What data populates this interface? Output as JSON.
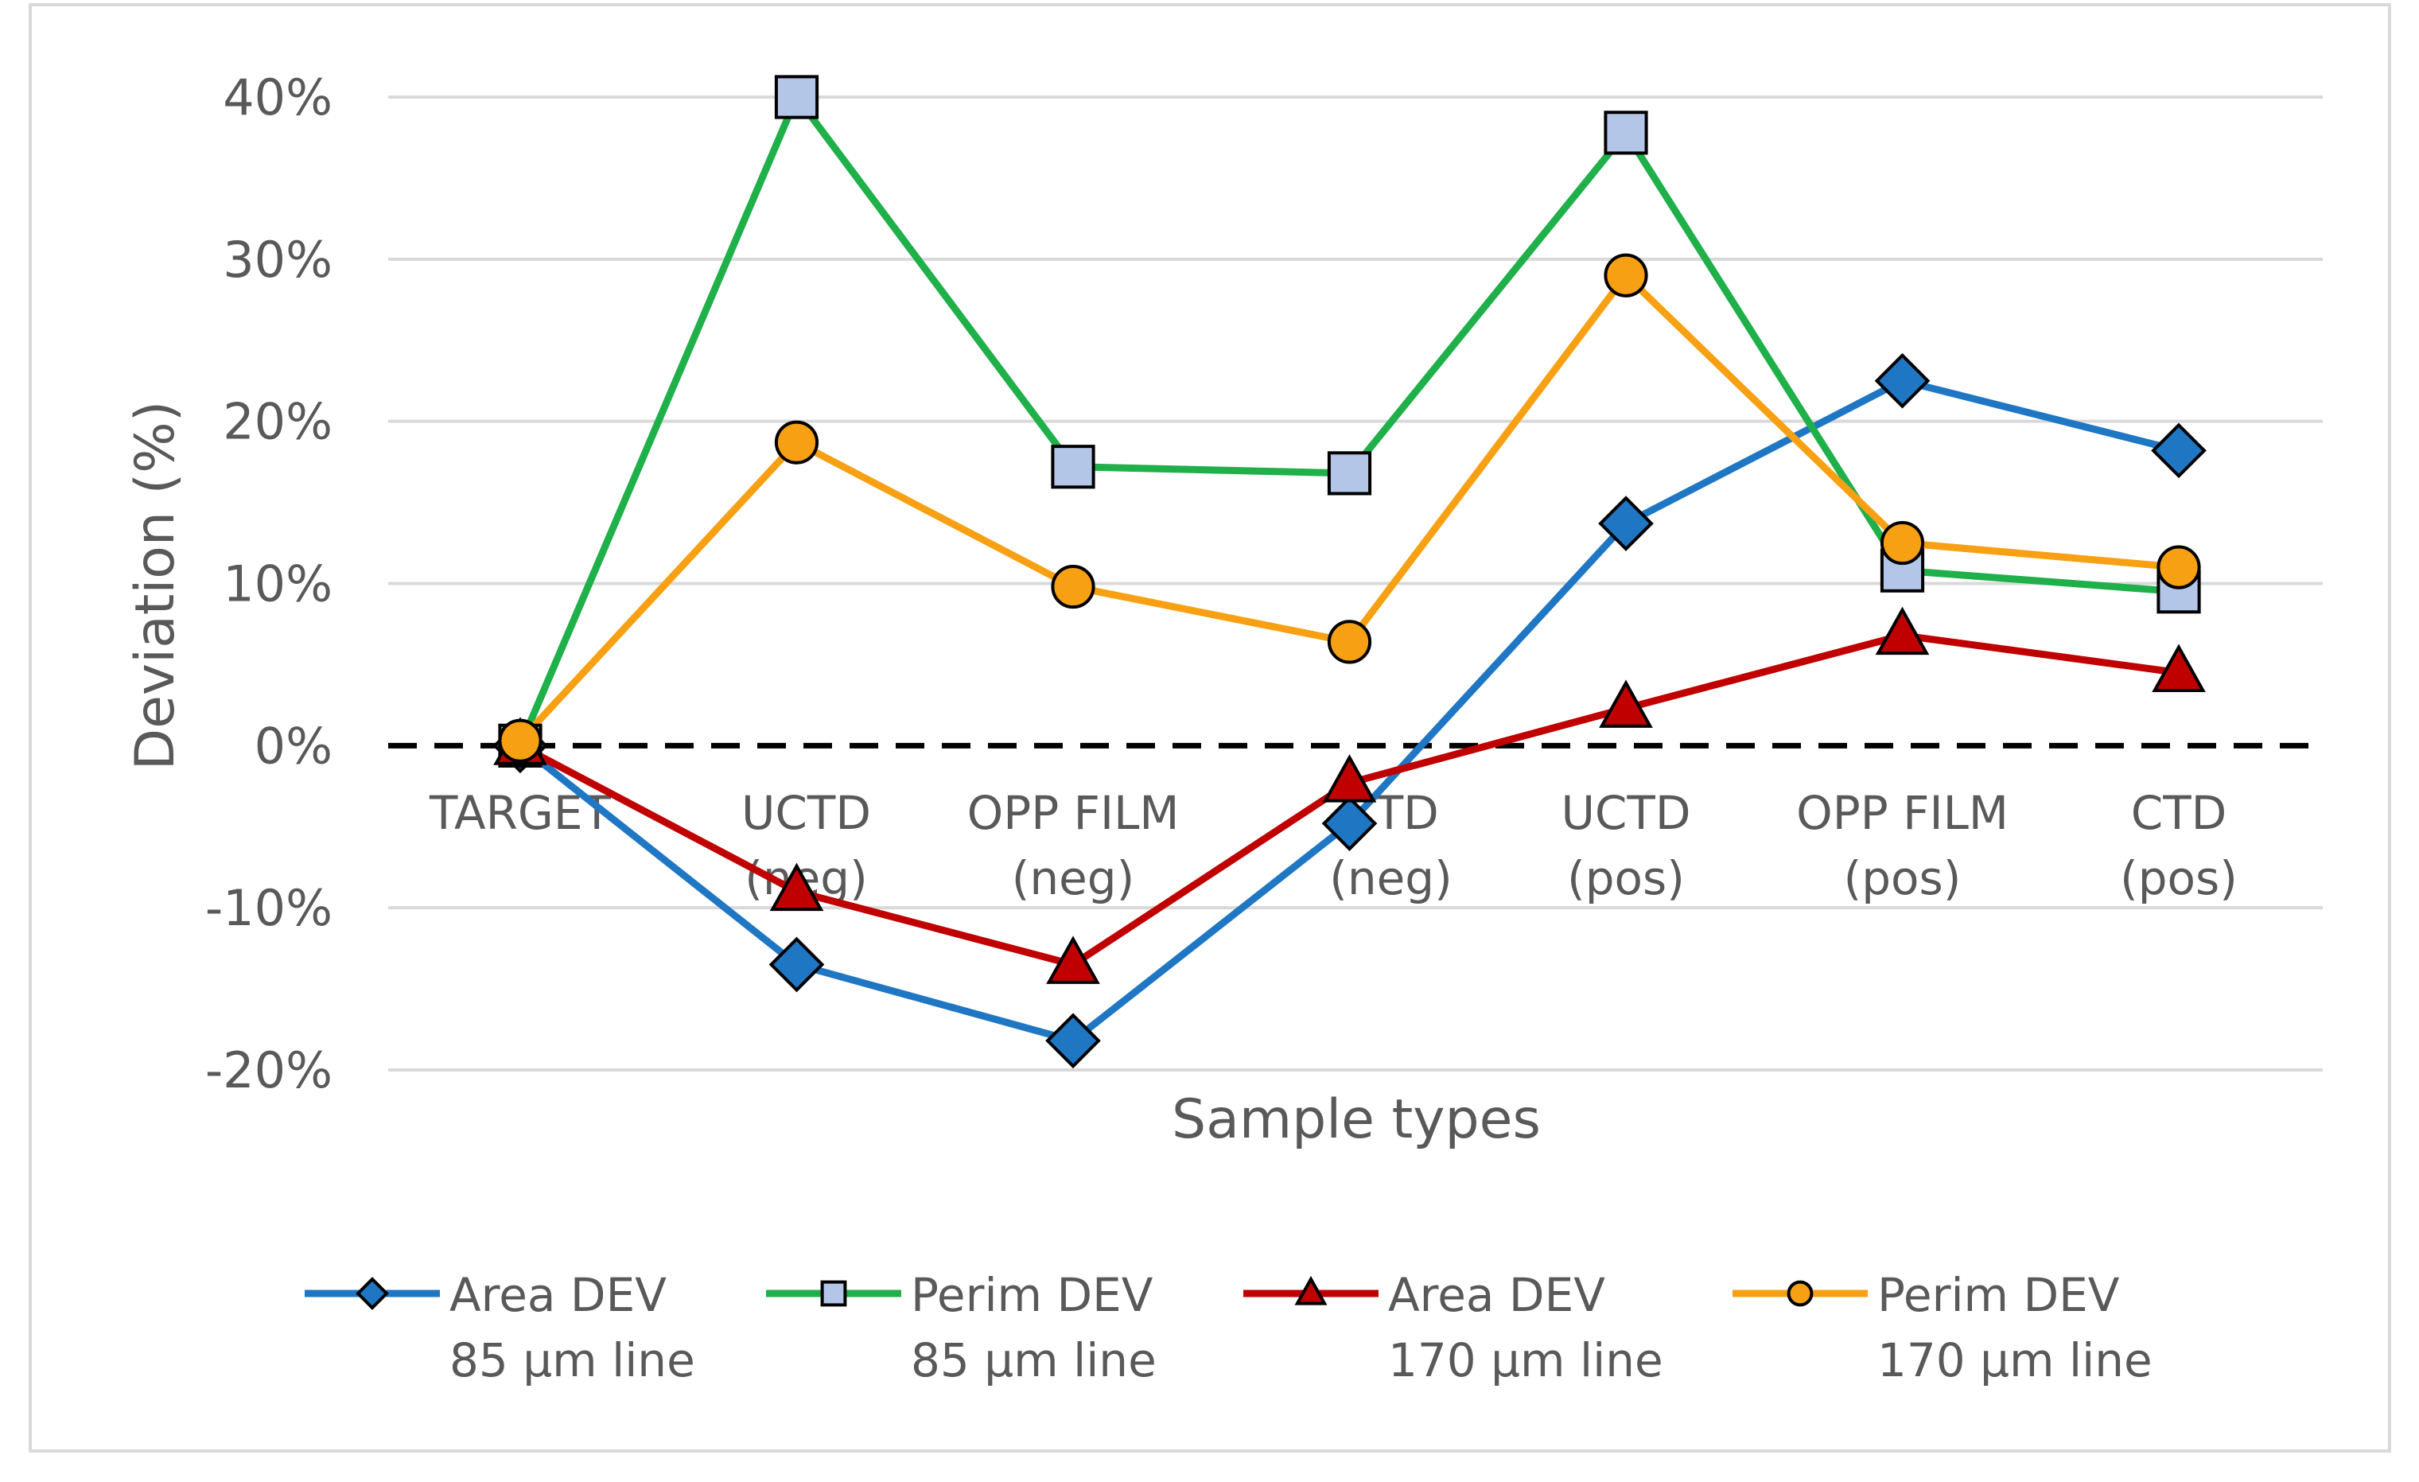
{
  "chart_data": {
    "type": "line",
    "title": "",
    "xlabel": "Sample types",
    "ylabel": "Deviation (%)",
    "ylim": [
      -20,
      40
    ],
    "yticks": [
      -20,
      -10,
      0,
      10,
      20,
      30,
      40
    ],
    "ytick_labels": [
      "-20%",
      "-10%",
      "0%",
      "10%",
      "20%",
      "30%",
      "40%"
    ],
    "grid": true,
    "reference_line": {
      "value": 0,
      "style": "dashed"
    },
    "legend_position": "bottom",
    "categories": [
      [
        "TARGET"
      ],
      [
        "UCTD",
        "(neg)"
      ],
      [
        "OPP FILM",
        "(neg)"
      ],
      [
        "CTD",
        "(neg)"
      ],
      [
        "UCTD",
        "(pos)"
      ],
      [
        "OPP FILM",
        "(pos)"
      ],
      [
        "CTD",
        "(pos)"
      ]
    ],
    "series": [
      {
        "name_line1": "Area DEV",
        "name_line2": "85 μm line",
        "color": "#1f77c4",
        "marker": "diamond",
        "marker_fill": "#1f77c4",
        "values": [
          0,
          -13.5,
          -18.2,
          -4.8,
          13.7,
          22.5,
          18.2
        ]
      },
      {
        "name_line1": "Perim DEV",
        "name_line2": "85 μm line",
        "color": "#1fb04a",
        "marker": "square",
        "marker_fill": "#b4c6e7",
        "values": [
          0,
          40.0,
          17.2,
          16.8,
          37.8,
          10.8,
          9.5
        ]
      },
      {
        "name_line1": "Area DEV",
        "name_line2": "170 μm line",
        "color": "#c00000",
        "marker": "triangle",
        "marker_fill": "#c00000",
        "values": [
          0,
          -9.0,
          -13.5,
          -2.3,
          2.3,
          6.8,
          4.5
        ]
      },
      {
        "name_line1": "Perim DEV",
        "name_line2": "170 μm line",
        "color": "#f8a013",
        "marker": "circle",
        "marker_fill": "#f8a013",
        "values": [
          0.3,
          18.7,
          9.8,
          6.4,
          29.0,
          12.5,
          11.0
        ]
      }
    ]
  }
}
